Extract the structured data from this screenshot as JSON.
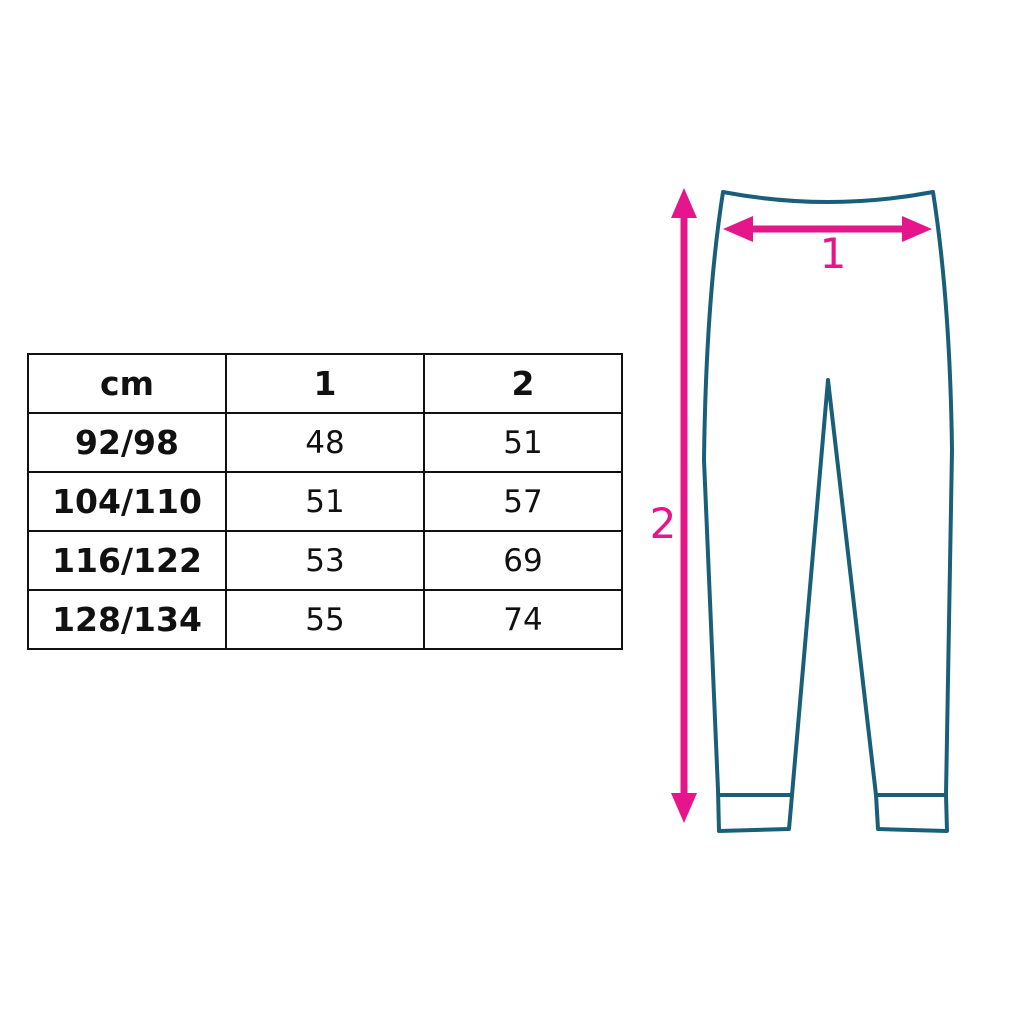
{
  "table": {
    "headers": [
      "cm",
      "1",
      "2"
    ],
    "rows": [
      [
        "92/98",
        "48",
        "51"
      ],
      [
        "104/110",
        "51",
        "57"
      ],
      [
        "116/122",
        "53",
        "69"
      ],
      [
        "128/134",
        "55",
        "74"
      ]
    ]
  },
  "diagram": {
    "measure_1_label": "1",
    "measure_2_label": "2",
    "arrow_color": "#e5158c",
    "outline_color": "#1a5f7a"
  }
}
